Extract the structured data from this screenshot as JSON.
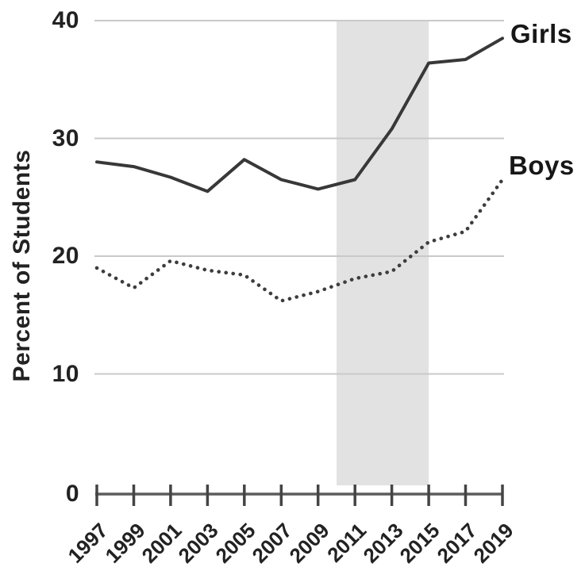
{
  "chart_data": {
    "type": "line",
    "title": "",
    "xlabel": "",
    "ylabel": "Percent of Students",
    "categories": [
      "1997",
      "1999",
      "2001",
      "2003",
      "2005",
      "2007",
      "2009",
      "2011",
      "2013",
      "2015",
      "2017",
      "2019"
    ],
    "series": [
      {
        "name": "Girls",
        "style": "solid",
        "values": [
          28.0,
          27.6,
          26.7,
          25.5,
          28.2,
          26.5,
          25.7,
          26.5,
          30.8,
          36.4,
          36.7,
          38.5
        ]
      },
      {
        "name": "Boys",
        "style": "dotted",
        "values": [
          19.0,
          17.3,
          19.6,
          18.8,
          18.4,
          16.2,
          17.0,
          18.1,
          18.7,
          21.2,
          22.1,
          26.5
        ]
      }
    ],
    "y_ticks": [
      40,
      30,
      20,
      10,
      0
    ],
    "ylim": [
      0,
      40
    ],
    "xlim": [
      1997,
      2019
    ],
    "highlight_band": {
      "from": 2010,
      "to": 2015,
      "color": "#e2e2e2"
    },
    "grid": "horizontal only",
    "legend_position": "end-of-line labels",
    "colors": {
      "girls_line": "#383838",
      "boys_line": "#3d3d3d",
      "gridline": "#c9c9c9",
      "axis_line": "#5c5c5c",
      "tick": "#444444",
      "text": "#222222",
      "band": "#e2e2e2"
    }
  }
}
